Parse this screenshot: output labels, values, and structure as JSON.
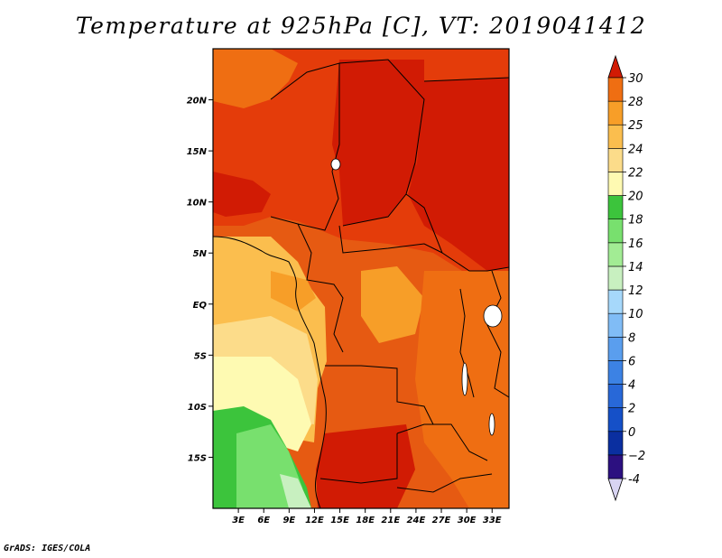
{
  "title": "Temperature at 925hPa [C], VT: 2019041412",
  "credit": "GrADS: IGES/COLA",
  "map": {
    "lon_range": [
      0,
      35
    ],
    "lat_range": [
      -20,
      25
    ],
    "lat_ticks": [
      {
        "value": 20,
        "label": "20N"
      },
      {
        "value": 15,
        "label": "15N"
      },
      {
        "value": 10,
        "label": "10N"
      },
      {
        "value": 5,
        "label": "5N"
      },
      {
        "value": 0,
        "label": "EQ"
      },
      {
        "value": -5,
        "label": "5S"
      },
      {
        "value": -10,
        "label": "10S"
      },
      {
        "value": -15,
        "label": "15S"
      }
    ],
    "lon_ticks": [
      {
        "value": 3,
        "label": "3E"
      },
      {
        "value": 6,
        "label": "6E"
      },
      {
        "value": 9,
        "label": "9E"
      },
      {
        "value": 12,
        "label": "12E"
      },
      {
        "value": 15,
        "label": "15E"
      },
      {
        "value": 18,
        "label": "18E"
      },
      {
        "value": 21,
        "label": "21E"
      },
      {
        "value": 24,
        "label": "24E"
      },
      {
        "value": 27,
        "label": "27E"
      },
      {
        "value": 30,
        "label": "30E"
      },
      {
        "value": 33,
        "label": "33E"
      }
    ]
  },
  "colorbar": {
    "levels": [
      {
        "label": "-4",
        "color": "#2c1080"
      },
      {
        "label": "−2",
        "color": "#0a2fa0"
      },
      {
        "label": "0",
        "color": "#1550c8"
      },
      {
        "label": "2",
        "color": "#2868d8"
      },
      {
        "label": "4",
        "color": "#3c82e4"
      },
      {
        "label": "6",
        "color": "#5a9eee"
      },
      {
        "label": "8",
        "color": "#80bcf6"
      },
      {
        "label": "10",
        "color": "#a6d8fb"
      },
      {
        "label": "12",
        "color": "#c8f0c0"
      },
      {
        "label": "14",
        "color": "#a2ec94"
      },
      {
        "label": "16",
        "color": "#78e06e"
      },
      {
        "label": "18",
        "color": "#3cc43c"
      },
      {
        "label": "20",
        "color": "#fefab2"
      },
      {
        "label": "22",
        "color": "#fcdc8a"
      },
      {
        "label": "24",
        "color": "#fbbe4e"
      },
      {
        "label": "25",
        "color": "#f79e28"
      },
      {
        "label": "28",
        "color": "#ef6e12"
      },
      {
        "label": "30",
        "color": "#e43c0a"
      }
    ],
    "under_color": "#d8d4f2",
    "over_color": "#d11b04"
  }
}
